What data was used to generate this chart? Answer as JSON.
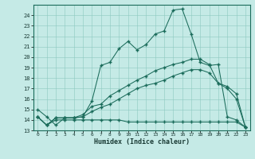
{
  "xlabel": "Humidex (Indice chaleur)",
  "bg_color": "#c5eae6",
  "grid_color": "#8dc8c0",
  "line_color": "#1a6b5a",
  "spine_color": "#1a6b5a",
  "xlim": [
    -0.5,
    23.5
  ],
  "ylim": [
    13,
    25
  ],
  "xticks": [
    0,
    1,
    2,
    3,
    4,
    5,
    6,
    7,
    8,
    9,
    10,
    11,
    12,
    13,
    14,
    15,
    16,
    17,
    18,
    19,
    20,
    21,
    22,
    23
  ],
  "yticks": [
    13,
    14,
    15,
    16,
    17,
    18,
    19,
    20,
    21,
    22,
    23,
    24
  ],
  "line1_x": [
    0,
    1,
    2,
    3,
    4,
    5,
    6,
    7,
    8,
    9,
    10,
    11,
    12,
    13,
    14,
    15,
    16,
    17,
    18,
    19,
    20,
    21,
    22,
    23
  ],
  "line1_y": [
    15.0,
    14.3,
    13.5,
    14.2,
    14.2,
    14.3,
    15.8,
    19.2,
    19.5,
    20.8,
    21.5,
    20.7,
    21.2,
    22.2,
    22.5,
    24.5,
    24.6,
    22.2,
    19.5,
    19.2,
    19.3,
    14.3,
    14.0,
    13.3
  ],
  "line2_x": [
    0,
    1,
    2,
    3,
    4,
    5,
    6,
    7,
    8,
    9,
    10,
    11,
    12,
    13,
    14,
    15,
    16,
    17,
    18,
    19,
    20,
    21,
    22,
    23
  ],
  "line2_y": [
    14.3,
    13.5,
    14.2,
    14.2,
    14.2,
    14.5,
    15.3,
    15.5,
    16.3,
    16.8,
    17.3,
    17.8,
    18.2,
    18.7,
    19.0,
    19.3,
    19.5,
    19.8,
    19.8,
    19.3,
    17.5,
    17.2,
    16.5,
    13.3
  ],
  "line3_x": [
    0,
    1,
    2,
    3,
    4,
    5,
    6,
    7,
    8,
    9,
    10,
    11,
    12,
    13,
    14,
    15,
    16,
    17,
    18,
    19,
    20,
    21,
    22,
    23
  ],
  "line3_y": [
    14.3,
    13.5,
    14.2,
    14.2,
    14.2,
    14.3,
    14.8,
    15.2,
    15.5,
    16.0,
    16.5,
    17.0,
    17.3,
    17.5,
    17.8,
    18.2,
    18.5,
    18.8,
    18.8,
    18.5,
    17.5,
    17.0,
    16.0,
    13.3
  ],
  "line4_x": [
    0,
    1,
    2,
    3,
    4,
    5,
    6,
    7,
    8,
    9,
    10,
    11,
    12,
    13,
    14,
    15,
    16,
    17,
    18,
    19,
    20,
    21,
    22,
    23
  ],
  "line4_y": [
    14.3,
    13.5,
    14.0,
    14.0,
    14.0,
    14.0,
    14.0,
    14.0,
    14.0,
    14.0,
    13.8,
    13.8,
    13.8,
    13.8,
    13.8,
    13.8,
    13.8,
    13.8,
    13.8,
    13.8,
    13.8,
    13.8,
    13.8,
    13.3
  ]
}
